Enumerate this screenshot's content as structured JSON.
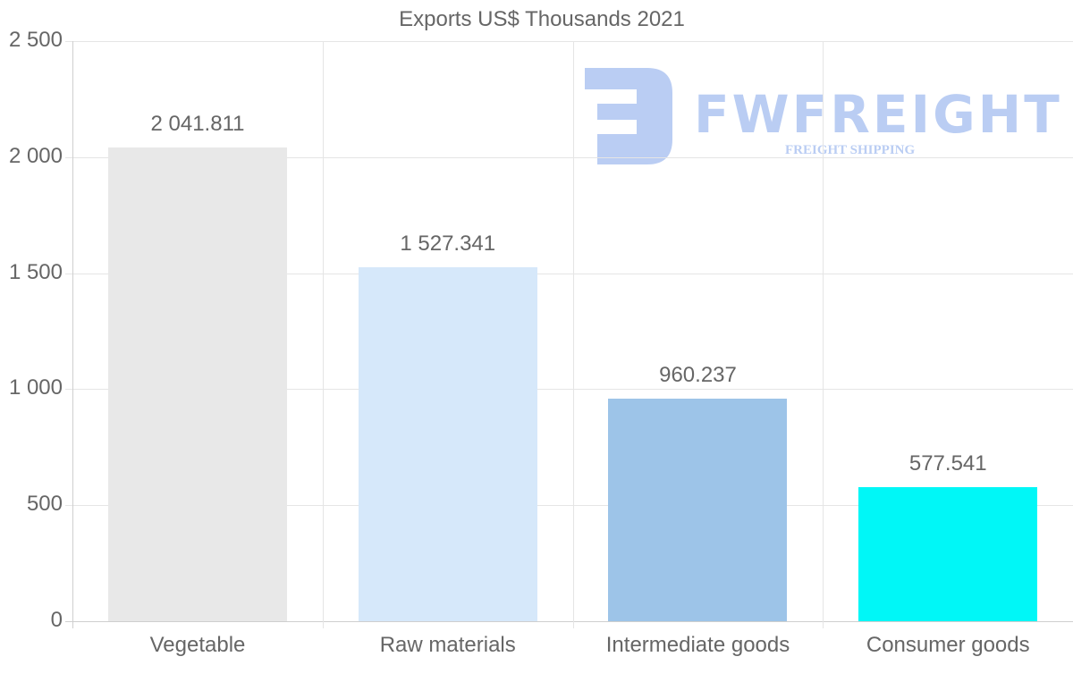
{
  "chart_data": {
    "type": "bar",
    "title": "Exports US$ Thousands 2021",
    "categories": [
      "Vegetable",
      "Raw materials",
      "Intermediate goods",
      "Consumer goods"
    ],
    "values": [
      2041.811,
      1527.341,
      960.237,
      577.541
    ],
    "value_labels": [
      "2 041.811",
      "1 527.341",
      "960.237",
      "577.541"
    ],
    "colors": [
      "#e8e8e8",
      "#d6e8fa",
      "#9dc4e8",
      "#00f7f7"
    ],
    "xlabel": "",
    "ylabel": "",
    "ylim": [
      0,
      2500
    ],
    "yticks": [
      0,
      500,
      1000,
      1500,
      2000,
      2500
    ],
    "ytick_labels": [
      "0",
      "500",
      "1 000",
      "1 500",
      "2 000",
      "2 500"
    ],
    "grid": true,
    "legend": "none"
  },
  "watermark": {
    "brand": "FWFREIGHT",
    "tagline": "FREIGHT SHIPPING"
  }
}
